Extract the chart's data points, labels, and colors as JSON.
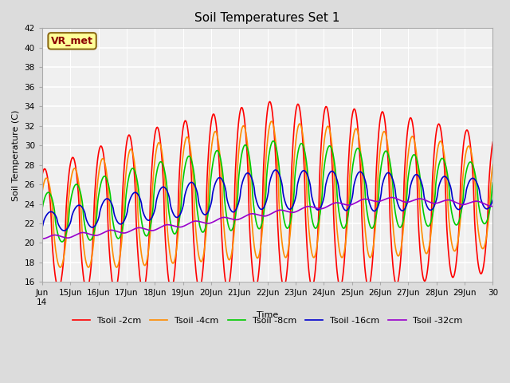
{
  "title": "Soil Temperatures Set 1",
  "xlabel": "Time",
  "ylabel": "Soil Temperature (C)",
  "ylim": [
    16,
    42
  ],
  "line_colors": [
    "#FF0000",
    "#FF8C00",
    "#00CC00",
    "#0000CD",
    "#9900CC"
  ],
  "line_labels": [
    "Tsoil -2cm",
    "Tsoil -4cm",
    "Tsoil -8cm",
    "Tsoil -16cm",
    "Tsoil -32cm"
  ],
  "line_width": 1.2,
  "legend_fontsize": 8,
  "title_fontsize": 11,
  "label_fontsize": 8,
  "tick_fontsize": 7.5,
  "annotation_text": "VR_met",
  "annotation_color": "#8B0000",
  "annotation_bg": "#FFFF99",
  "annotation_border": "#8B6914",
  "fig_bg": "#DCDCDC",
  "plot_bg": "#F0F0F0",
  "grid_color": "#FFFFFF"
}
